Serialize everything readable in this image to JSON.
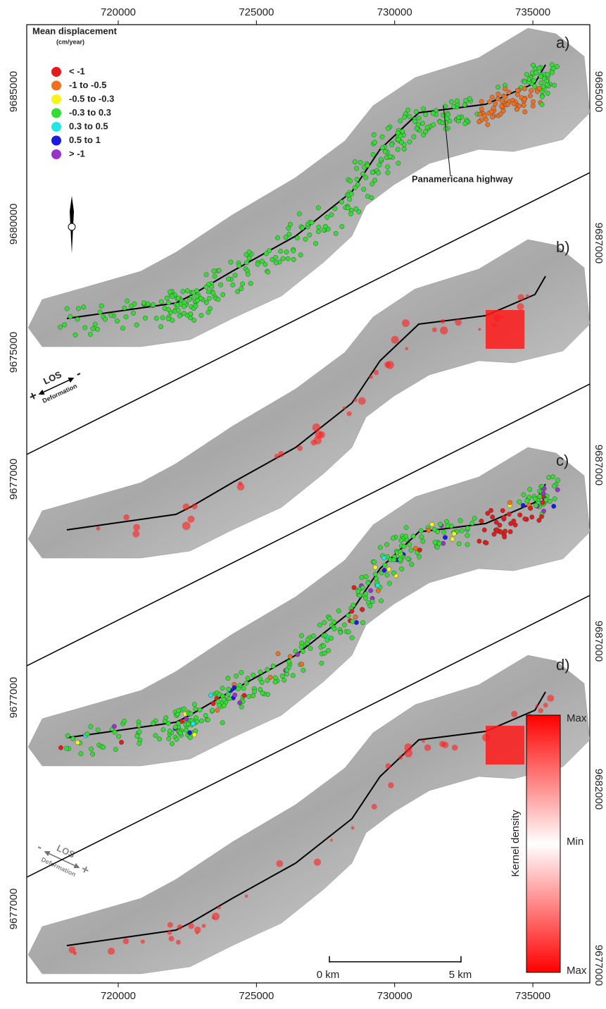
{
  "x_axis": {
    "ticks": [
      720000,
      725000,
      730000,
      735000
    ]
  },
  "left_axis_labels": [
    9685000,
    9680000,
    9675000,
    9677000,
    9677000,
    9677000
  ],
  "right_axis_labels": [
    9685000,
    9687000,
    9687000,
    9687000,
    9682000,
    9677000
  ],
  "panels": [
    "a)",
    "b)",
    "c)",
    "d)"
  ],
  "legend": {
    "title": "Mean displacement",
    "unit": "(cm/year)",
    "items": [
      {
        "label": "< -1",
        "color": "#e41a1c"
      },
      {
        "label": "-1  to  -0.5",
        "color": "#f07020"
      },
      {
        "label": "-0.5  to  -0.3",
        "color": "#f5f51a"
      },
      {
        "label": "-0.3  to  0.3",
        "color": "#33dd33"
      },
      {
        "label": "0.3  to  0.5",
        "color": "#22e5e5"
      },
      {
        "label": "0.5  to  1",
        "color": "#1a1ae0"
      },
      {
        "label": "> -1",
        "color": "#9933cc"
      }
    ]
  },
  "highway_label": "Panamericana highway",
  "los_a": {
    "los": "LOS",
    "plus": "+",
    "minus": "-",
    "deformation": "Deformation"
  },
  "los_c": {
    "los": "LOS",
    "plus": "+",
    "minus": "-",
    "deformation": "Deformation"
  },
  "scale_bar": {
    "start": "0 km",
    "end": "5 km"
  },
  "kernel_density": {
    "title": "Kernel density",
    "top": "Max",
    "middle": "Min",
    "bottom": "Max"
  }
}
